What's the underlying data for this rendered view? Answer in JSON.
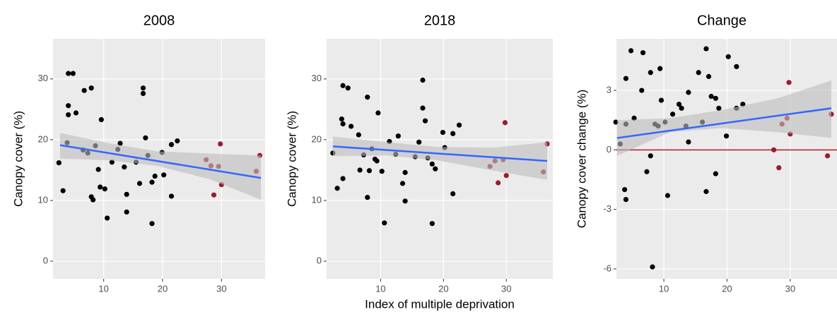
{
  "chart_data": [
    {
      "type": "scatter",
      "title": "2008",
      "ylabel": "Canopy cover (%)",
      "xlim": [
        1.4,
        37.4
      ],
      "ylim": [
        -2.9,
        36.6
      ],
      "xticks": [
        10,
        20,
        30
      ],
      "yticks": [
        0,
        10,
        20,
        30
      ],
      "grid": true,
      "series": [
        {
          "color": "#000000",
          "x": [
            2.4,
            3.1,
            3.8,
            4,
            4,
            4.8,
            4,
            5.3,
            6.5,
            6.7,
            7.9,
            7.3,
            7.9,
            8.2,
            8.6,
            9.1,
            9.4,
            9.6,
            10.2,
            10.6,
            11.4,
            12.4,
            12.8,
            13.5,
            13.9,
            13.9,
            15.5,
            16.1,
            16.7,
            16.7,
            17.1,
            17.5,
            18.2,
            18.2,
            18.7,
            19.9,
            20.2,
            21.5,
            22.5,
            21.5
          ],
          "y": [
            16.2,
            11.6,
            19.5,
            24.1,
            30.9,
            30.9,
            25.6,
            24.4,
            18.3,
            28.1,
            28.5,
            17.8,
            10.6,
            10.1,
            19,
            15.1,
            12.2,
            23.3,
            11.9,
            7.1,
            16.3,
            18.4,
            19.4,
            15.5,
            11,
            8.1,
            16.3,
            12.8,
            28.5,
            27.6,
            20.3,
            17.4,
            13,
            6.2,
            14,
            17.9,
            14.2,
            10.7,
            19.8,
            19.2
          ]
        },
        {
          "color": "#9b1b30",
          "x": [
            27.4,
            28.2,
            28.7,
            29.5,
            29.8,
            30,
            35.9,
            36.5
          ],
          "y": [
            16.7,
            15.7,
            10.9,
            15.6,
            19.3,
            12.6,
            14.8,
            17.4
          ]
        }
      ],
      "fit": {
        "color": "#3366ff",
        "x": [
          2.6,
          36.7
        ],
        "y": [
          19.1,
          13.7
        ]
      },
      "band": {
        "color": "#bdbdbd",
        "x": [
          2.6,
          11,
          19,
          28,
          36.7
        ],
        "lower": [
          16.9,
          16.6,
          15.7,
          13.5,
          10.1
        ],
        "upper": [
          21.1,
          19.4,
          18.1,
          17.7,
          17.4
        ]
      }
    },
    {
      "type": "scatter",
      "title": "2018",
      "ylabel": "Canopy cover (%)",
      "xlabel": "Index of multiple deprivation",
      "xlim": [
        1.4,
        37.4
      ],
      "ylim": [
        -2.9,
        36.6
      ],
      "xticks": [
        10,
        20,
        30
      ],
      "yticks": [
        0,
        10,
        20,
        30
      ],
      "grid": true,
      "series": [
        {
          "color": "#000000",
          "x": [
            2.4,
            3.1,
            3.8,
            4,
            4,
            4.8,
            4,
            5.3,
            6.5,
            6.7,
            7.9,
            7.3,
            7.9,
            8.2,
            8.6,
            9.1,
            9.4,
            9.6,
            10.2,
            10.6,
            11.4,
            12.4,
            12.8,
            13.5,
            13.9,
            13.9,
            15.5,
            16.1,
            16.7,
            16.7,
            17.1,
            17.5,
            18.2,
            18.2,
            18.7,
            19.9,
            20.2,
            21.5,
            22.5,
            21.5
          ],
          "y": [
            17.8,
            12,
            23.4,
            28.9,
            22.6,
            28.5,
            13.6,
            22.2,
            20.8,
            15,
            27,
            17.5,
            10.5,
            14.9,
            18.5,
            16.8,
            16.5,
            24.4,
            14.8,
            6.3,
            19.7,
            17.6,
            20.6,
            12.8,
            9.9,
            14.6,
            17.2,
            19.6,
            29.8,
            25.2,
            23.1,
            17,
            16,
            6.2,
            15.2,
            21.2,
            18.7,
            11.1,
            22.4,
            21
          ]
        },
        {
          "color": "#9b1b30",
          "x": [
            27.4,
            28.2,
            28.7,
            29.5,
            29.8,
            30,
            35.9,
            36.5
          ],
          "y": [
            15.6,
            16.5,
            12.9,
            16.7,
            22.8,
            14.1,
            14.7,
            19.3
          ]
        }
      ],
      "fit": {
        "color": "#3366ff",
        "x": [
          2.4,
          36.5
        ],
        "y": [
          18.9,
          16.5
        ]
      },
      "band": {
        "color": "#bdbdbd",
        "x": [
          2.4,
          11,
          19,
          28,
          36.5
        ],
        "lower": [
          17.3,
          17.4,
          16.6,
          14.9,
          13.4
        ],
        "upper": [
          20.5,
          19.6,
          18.8,
          18.7,
          19.6
        ]
      }
    },
    {
      "type": "scatter",
      "title": "Change",
      "ylabel": "Canopy cover change (%)",
      "xlim": [
        2.5,
        37.4
      ],
      "ylim": [
        -6.5,
        5.6
      ],
      "xticks": [
        10,
        20,
        30
      ],
      "yticks": [
        -6,
        -3,
        0,
        3
      ],
      "grid": true,
      "series": [
        {
          "color": "#000000",
          "x": [
            2.4,
            3.1,
            3.8,
            4,
            4,
            4.8,
            4,
            5.3,
            6.5,
            6.7,
            7.9,
            7.3,
            7.9,
            8.2,
            8.6,
            9.1,
            9.4,
            9.6,
            10.2,
            10.6,
            11.4,
            12.4,
            12.8,
            13.5,
            13.9,
            13.9,
            15.5,
            16.1,
            16.7,
            16.7,
            17.1,
            17.5,
            18.2,
            18.2,
            18.7,
            19.9,
            20.2,
            21.5,
            22.5,
            21.5
          ],
          "y": [
            1.4,
            0.3,
            -2,
            3.6,
            1.3,
            5,
            -2.5,
            1.6,
            3,
            4.9,
            3.9,
            -1.1,
            -0.3,
            -5.9,
            1.3,
            1.2,
            4.1,
            2.5,
            1.4,
            -2.3,
            1.8,
            2.3,
            2.1,
            1.2,
            2.9,
            0.4,
            3.9,
            1.4,
            5.1,
            -2.1,
            3.7,
            2.7,
            -1.2,
            2.6,
            2.1,
            0.7,
            4.7,
            4.2,
            2.3,
            2.1
          ]
        },
        {
          "color": "#9b1b30",
          "x": [
            27.4,
            28.2,
            28.7,
            29.5,
            29.8,
            30,
            35.9,
            36.5
          ],
          "y": [
            0,
            -0.9,
            1.3,
            1.6,
            3.4,
            0.8,
            -0.3,
            1.8
          ]
        }
      ],
      "fit": {
        "color": "#3366ff",
        "x": [
          2.6,
          36.5
        ],
        "y": [
          0.6,
          2.1
        ]
      },
      "band": {
        "color": "#bdbdbd",
        "x": [
          2.6,
          11,
          19,
          28,
          36.5
        ],
        "lower": [
          -0.3,
          0.9,
          1.1,
          0.9,
          0.6
        ],
        "upper": [
          1.5,
          1.6,
          2.0,
          2.6,
          3.5
        ]
      },
      "hline": {
        "value": 0,
        "color": "#b2182b"
      }
    }
  ]
}
